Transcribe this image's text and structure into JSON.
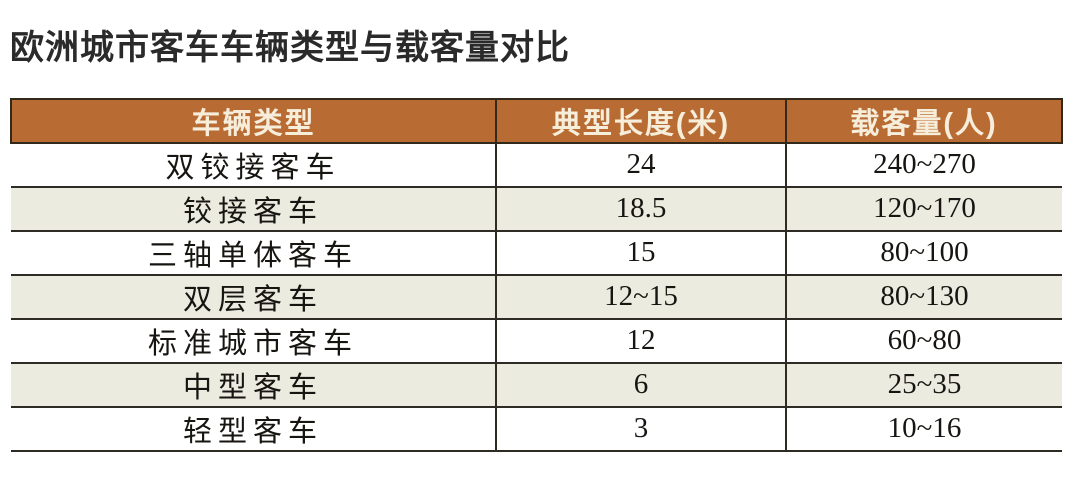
{
  "title": "欧洲城市客车车辆类型与载客量对比",
  "table": {
    "columns": [
      "车辆类型",
      "典型长度(米)",
      "载客量(人)"
    ],
    "rows": [
      {
        "type": "双铰接客车",
        "length": "24",
        "capacity": "240~270"
      },
      {
        "type": "铰接客车",
        "length": "18.5",
        "capacity": "120~170"
      },
      {
        "type": "三轴单体客车",
        "length": "15",
        "capacity": "80~100"
      },
      {
        "type": "双层客车",
        "length": "12~15",
        "capacity": "80~130"
      },
      {
        "type": "标准城市客车",
        "length": "12",
        "capacity": "60~80"
      },
      {
        "type": "中型客车",
        "length": "6",
        "capacity": "25~35"
      },
      {
        "type": "轻型客车",
        "length": "3",
        "capacity": "10~16"
      }
    ]
  },
  "colors": {
    "header_bg": "#b86c34",
    "header_text": "#f6edda",
    "row_alt_bg": "#ecebe0",
    "row_bg": "#ffffff",
    "border": "#2e2b24",
    "header_border": "#33291b",
    "title_text": "#2a2a2a"
  },
  "chart_data": {
    "type": "table",
    "title": "欧洲城市客车车辆类型与载客量对比",
    "columns": [
      "车辆类型",
      "典型长度(米)",
      "载客量(人)"
    ],
    "rows": [
      [
        "双铰接客车",
        "24",
        "240~270"
      ],
      [
        "铰接客车",
        "18.5",
        "120~170"
      ],
      [
        "三轴单体客车",
        "15",
        "80~100"
      ],
      [
        "双层客车",
        "12~15",
        "80~130"
      ],
      [
        "标准城市客车",
        "12",
        "60~80"
      ],
      [
        "中型客车",
        "6",
        "25~35"
      ],
      [
        "轻型客车",
        "3",
        "10~16"
      ]
    ],
    "layout": {
      "header_style": "orange band with cream bold text",
      "row_striping": "white / pale beige alternating",
      "grid": "horizontal rules on all row boundaries; vertical rules only between columns"
    }
  }
}
